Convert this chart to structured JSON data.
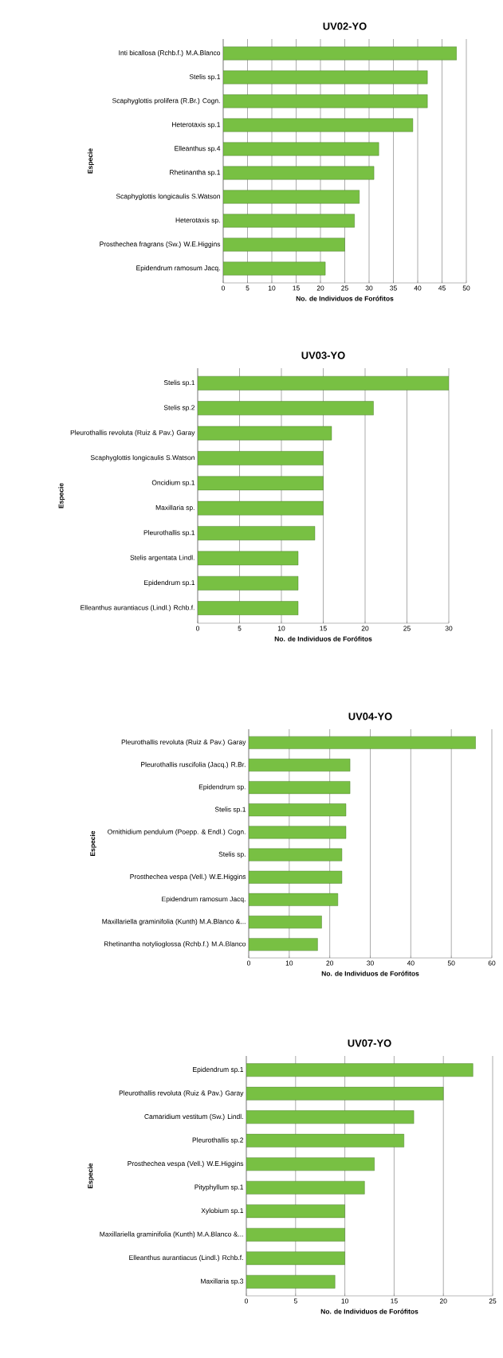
{
  "chart_data": [
    {
      "type": "bar",
      "orientation": "horizontal",
      "title": "UV02-YO",
      "xlabel": "No. de Individuos de Forófitos",
      "ylabel": "Especie",
      "categories": [
        "Inti bicallosa (Rchb.f.) M.A.Blanco",
        "Stelis sp.1",
        "Scaphyglottis prolifera (R.Br.) Cogn.",
        "Heterotaxis sp.1",
        "Elleanthus sp.4",
        "Rhetinantha sp.1",
        "Scaphyglottis longicaulis S.Watson",
        "Heterotaxis sp.",
        "Prosthechea fragrans (Sw.) W.E.Higgins",
        "Epidendrum ramosum Jacq."
      ],
      "values": [
        48,
        42,
        42,
        39,
        32,
        31,
        28,
        27,
        25,
        21
      ],
      "color": "#78c043",
      "xlim": [
        0,
        50
      ],
      "xticks": [
        0,
        5,
        10,
        15,
        20,
        25,
        30,
        35,
        40,
        45,
        50
      ],
      "grid": "x"
    },
    {
      "type": "bar",
      "orientation": "horizontal",
      "title": "UV03-YO",
      "xlabel": "No. de Individuos de Forófitos",
      "ylabel": "Especie",
      "categories": [
        "Stelis sp.1",
        "Stelis sp.2",
        "Pleurothallis revoluta (Ruiz & Pav.) Garay",
        "Scaphyglottis longicaulis S.Watson",
        "Oncidium sp.1",
        "Maxillaria sp.",
        "Pleurothallis sp.1",
        "Stelis argentata Lindl.",
        "Epidendrum sp.1",
        "Elleanthus aurantiacus (Lindl.) Rchb.f."
      ],
      "values": [
        30,
        21,
        16,
        15,
        15,
        15,
        14,
        12,
        12,
        12
      ],
      "color": "#78c043",
      "xlim": [
        0,
        30
      ],
      "xticks": [
        0,
        5,
        10,
        15,
        20,
        25,
        30
      ],
      "grid": "x"
    },
    {
      "type": "bar",
      "orientation": "horizontal",
      "title": "UV04-YO",
      "xlabel": "No. de Individuos de Forófitos",
      "ylabel": "Especie",
      "categories": [
        "Pleurothallis revoluta (Ruiz & Pav.) Garay",
        "Pleurothallis ruscifolia (Jacq.) R.Br.",
        "Epidendrum sp.",
        "Stelis sp.1",
        "Ornithidium pendulum (Poepp. & Endl.) Cogn.",
        "Stelis sp.",
        "Prosthechea vespa (Vell.) W.E.Higgins",
        "Epidendrum ramosum Jacq.",
        "Maxillariella graminifolia (Kunth) M.A.Blanco &...",
        "Rhetinantha notylioglossa (Rchb.f.) M.A.Blanco"
      ],
      "values": [
        56,
        25,
        25,
        24,
        24,
        23,
        23,
        22,
        18,
        17
      ],
      "color": "#78c043",
      "xlim": [
        0,
        60
      ],
      "xticks": [
        0,
        10,
        20,
        30,
        40,
        50,
        60
      ],
      "grid": "x"
    },
    {
      "type": "bar",
      "orientation": "horizontal",
      "title": "UV07-YO",
      "xlabel": "No. de Individuos de Forófitos",
      "ylabel": "Especie",
      "categories": [
        "Epidendrum sp.1",
        "Pleurothallis revoluta (Ruiz & Pav.) Garay",
        "Camaridium vestitum (Sw.) Lindl.",
        "Pleurothallis sp.2",
        "Prosthechea vespa (Vell.) W.E.Higgins",
        "Pityphyllum sp.1",
        "Xylobium sp.1",
        "Maxillariella graminifolia (Kunth) M.A.Blanco &...",
        "Elleanthus aurantiacus (Lindl.) Rchb.f.",
        "Maxillaria sp.3"
      ],
      "values": [
        23,
        20,
        17,
        16,
        13,
        12,
        10,
        10,
        10,
        9
      ],
      "color": "#78c043",
      "xlim": [
        0,
        25
      ],
      "xticks": [
        0,
        5,
        10,
        15,
        20,
        25
      ],
      "grid": "x"
    }
  ]
}
